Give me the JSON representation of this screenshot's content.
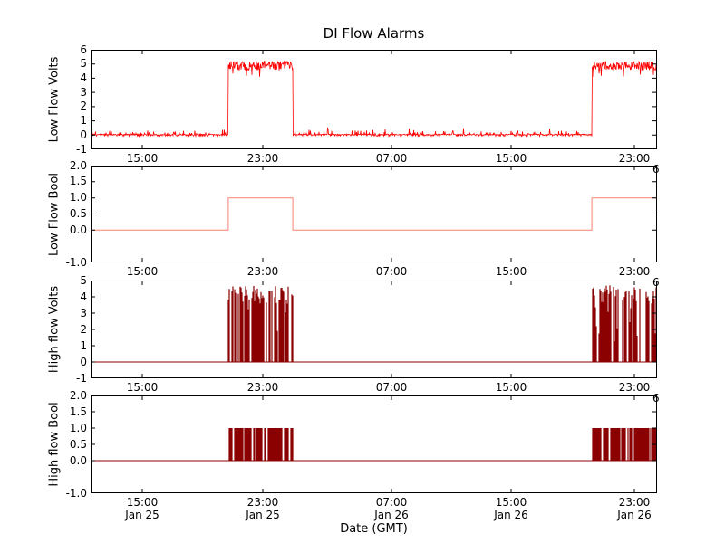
{
  "chart_data": {
    "type": "line",
    "title": "DI Flow Alarms",
    "xlabel": "Date (GMT)",
    "grid": false,
    "legend": false,
    "x_ticks": {
      "times": [
        "15:00",
        "23:00",
        "07:00",
        "15:00",
        "23:00"
      ],
      "dates": [
        "Jan 25",
        "Jan 25",
        "Jan 26",
        "Jan 26",
        "Jan 26"
      ],
      "fracs": [
        0.0912,
        0.304,
        0.5312,
        0.7424,
        0.96
      ]
    },
    "alarm_windows_frac": [
      [
        0.243,
        0.357
      ],
      [
        0.885,
        1.0
      ]
    ],
    "clipped_date_fragment": "6",
    "subplots": [
      {
        "name": "low-flow-volts",
        "ylabel": "Low Flow Volts",
        "color": "#ff0000",
        "ylim": [
          -1,
          6
        ],
        "ytick_values": [
          6,
          5,
          4,
          3,
          2,
          1,
          0,
          -1
        ],
        "ytick_labels": [
          "6",
          "5",
          "4",
          "3",
          "2",
          "1",
          "0",
          "-1"
        ],
        "signal": {
          "kind": "noisy-step",
          "low_level": 0,
          "high_level": 4.8
        }
      },
      {
        "name": "low-flow-bool",
        "ylabel": "Low Flow Bool",
        "color": "#fa8072",
        "ylim": [
          -1,
          2
        ],
        "ytick_values": [
          2,
          1.5,
          1,
          0.5,
          0,
          -1
        ],
        "ytick_labels": [
          "2.0",
          "1.5",
          "1.0",
          "0.5",
          "0.0",
          "-1.0"
        ],
        "signal": {
          "kind": "step",
          "low_level": 0,
          "high_level": 1
        }
      },
      {
        "name": "high-flow-volts",
        "ylabel": "High flow Volts",
        "color": "#8b0000",
        "ylim": [
          -1,
          5
        ],
        "ytick_values": [
          5,
          4,
          3,
          2,
          1,
          0,
          -1
        ],
        "ytick_labels": [
          "5",
          "4",
          "3",
          "2",
          "1",
          "0",
          "-1"
        ],
        "signal": {
          "kind": "burst",
          "low_level": 0,
          "high_level": 4.6
        }
      },
      {
        "name": "high-flow-bool",
        "ylabel": "High flow Bool",
        "color": "#8b0000",
        "ylim": [
          -1,
          2
        ],
        "ytick_values": [
          2,
          1.5,
          1,
          0.5,
          0,
          -1
        ],
        "ytick_labels": [
          "2.0",
          "1.5",
          "1.0",
          "0.5",
          "0.0",
          "-1.0"
        ],
        "signal": {
          "kind": "burst",
          "low_level": 0,
          "high_level": 1
        }
      }
    ]
  }
}
